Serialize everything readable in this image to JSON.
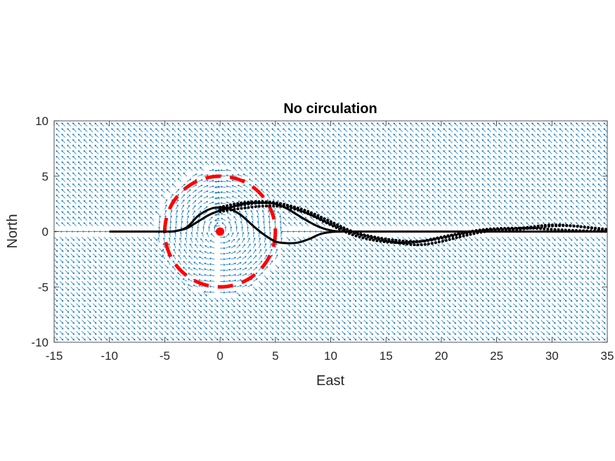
{
  "chart_data": {
    "type": "line",
    "title": "No circulation",
    "xlabel": "East",
    "ylabel": "North",
    "xlim": [
      -15,
      35
    ],
    "ylim": [
      -10,
      10
    ],
    "xticks": [
      "-15",
      "-10",
      "-5",
      "0",
      "5",
      "10",
      "15",
      "20",
      "25",
      "30",
      "35"
    ],
    "yticks": [
      "10",
      "5",
      "0",
      "-5",
      "-10"
    ],
    "grid": false,
    "legend": "none",
    "colors": {
      "quiver": "#0072BD",
      "circle": "#FF0000",
      "path": "#000000"
    },
    "vortex": {
      "center": [
        0,
        0
      ],
      "radius": 5,
      "circle_style": "dashed"
    },
    "background_flow": {
      "direction": "southeast-northwest diagonal"
    },
    "series": [
      {
        "style": "solid",
        "x": [
          -10,
          -5,
          -4,
          -3,
          -2,
          -1,
          0,
          1,
          2,
          3,
          4,
          5,
          6,
          7,
          8,
          9,
          10,
          11,
          12,
          35
        ],
        "y": [
          0,
          0,
          0.05,
          0.4,
          1.4,
          2.0,
          2.2,
          2.0,
          1.4,
          0.5,
          -0.3,
          -0.9,
          -1.05,
          -1.0,
          -0.7,
          -0.25,
          -0.05,
          0,
          0,
          0
        ]
      },
      {
        "style": "solid",
        "x": [
          -10,
          -5,
          -4,
          -3,
          -2,
          -1,
          0,
          1,
          2,
          3,
          4,
          5,
          6,
          7,
          8,
          9,
          10,
          11,
          12,
          35
        ],
        "y": [
          0,
          0,
          0.05,
          0.3,
          0.9,
          1.5,
          1.9,
          2.2,
          2.5,
          2.6,
          2.6,
          2.5,
          2.1,
          1.5,
          0.9,
          0.4,
          0.1,
          0,
          0,
          0
        ]
      },
      {
        "style": "dotted",
        "x": [
          0,
          2,
          4,
          6,
          8,
          10,
          12,
          14,
          16,
          18,
          20,
          22,
          24,
          26,
          28,
          30,
          32,
          35
        ],
        "y": [
          2.2,
          2.6,
          2.7,
          2.4,
          1.6,
          0.6,
          -0.3,
          -0.8,
          -1.0,
          -0.9,
          -0.5,
          -0.1,
          0.2,
          0.3,
          0.3,
          0.2,
          0.1,
          0
        ]
      },
      {
        "style": "dotted",
        "x": [
          0,
          2,
          4,
          6,
          8,
          10,
          12,
          14,
          16,
          18,
          20,
          22,
          24,
          26,
          28,
          30,
          32,
          35
        ],
        "y": [
          1.8,
          2.1,
          2.3,
          2.2,
          1.6,
          0.7,
          -0.1,
          -0.6,
          -1.0,
          -1.2,
          -0.9,
          -0.4,
          0,
          0.1,
          0.3,
          0.5,
          0.5,
          0.1
        ]
      },
      {
        "style": "dotted",
        "x": [
          0,
          2,
          4,
          6,
          8,
          10,
          12,
          14,
          16,
          18,
          20,
          22,
          24,
          26,
          28,
          30,
          32,
          35
        ],
        "y": [
          2.0,
          2.4,
          2.6,
          2.4,
          1.8,
          0.9,
          0,
          -0.5,
          -0.8,
          -0.9,
          -0.6,
          -0.2,
          0.1,
          0.2,
          0.4,
          0.6,
          0.5,
          0.2
        ]
      }
    ]
  }
}
